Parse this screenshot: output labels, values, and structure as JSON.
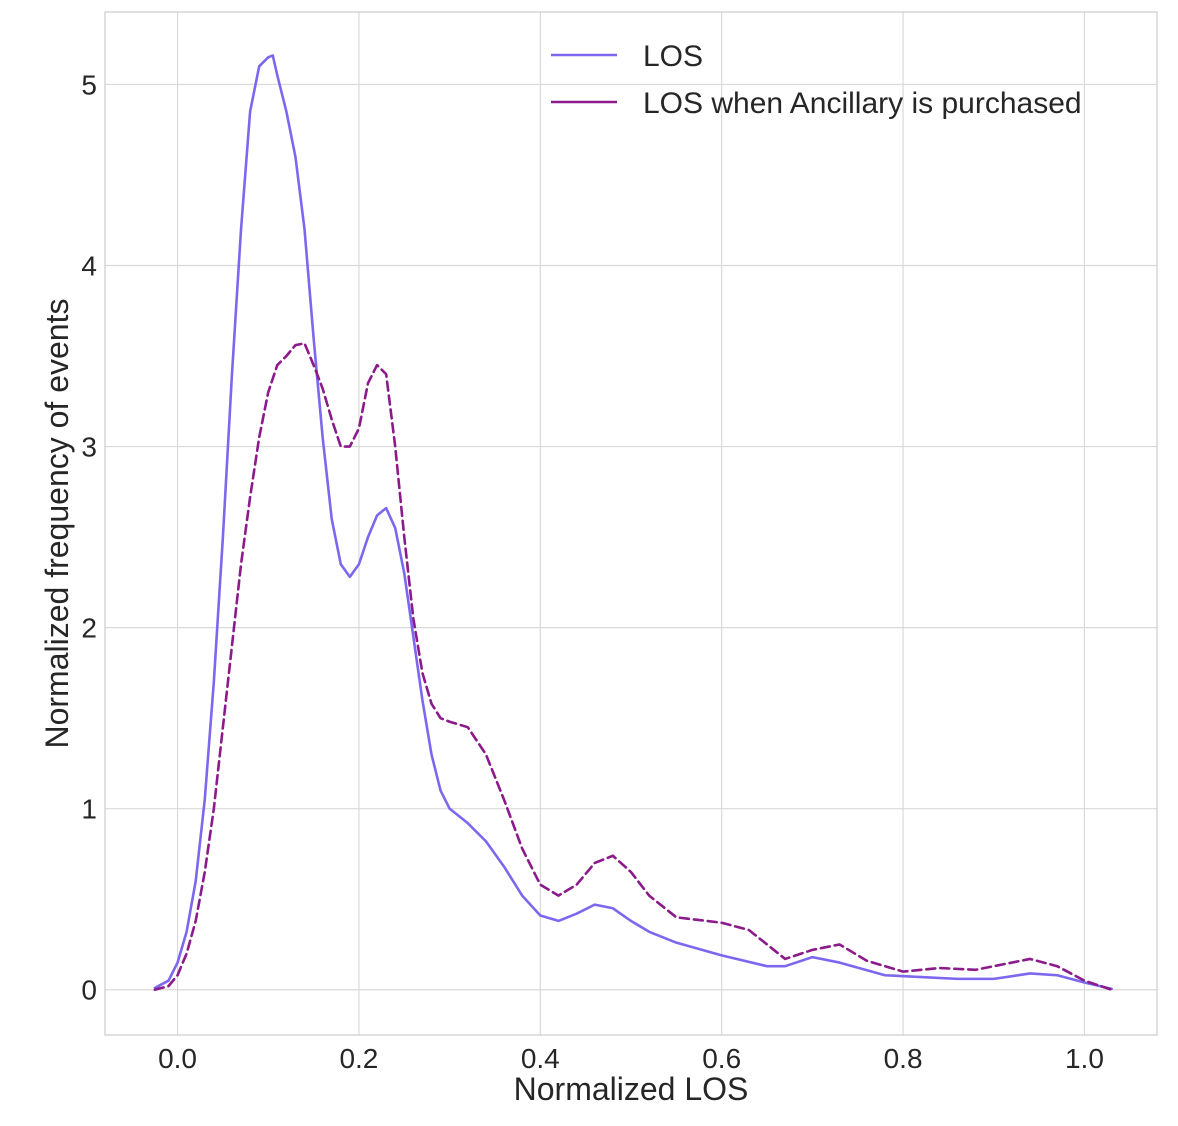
{
  "chart_data": {
    "type": "line",
    "title": "",
    "xlabel": "Normalized LOS",
    "ylabel": "Normalized frequency of events",
    "xlim": [
      -0.08,
      1.08
    ],
    "ylim": [
      -0.25,
      5.4
    ],
    "xticks": [
      0.0,
      0.2,
      0.4,
      0.6,
      0.8,
      1.0
    ],
    "xtick_labels": [
      "0.0",
      "0.2",
      "0.4",
      "0.6",
      "0.8",
      "1.0"
    ],
    "yticks": [
      0,
      1,
      2,
      3,
      4,
      5
    ],
    "ytick_labels": [
      "0",
      "1",
      "2",
      "3",
      "4",
      "5"
    ],
    "grid": true,
    "legend_position": "top-right",
    "series": [
      {
        "name": "LOS",
        "color": "#7b68ee",
        "style": "solid",
        "x": [
          -0.025,
          -0.01,
          0.0,
          0.01,
          0.02,
          0.03,
          0.04,
          0.05,
          0.06,
          0.07,
          0.08,
          0.09,
          0.1,
          0.105,
          0.11,
          0.12,
          0.13,
          0.14,
          0.15,
          0.16,
          0.17,
          0.18,
          0.19,
          0.2,
          0.21,
          0.22,
          0.23,
          0.24,
          0.25,
          0.26,
          0.27,
          0.28,
          0.29,
          0.3,
          0.32,
          0.34,
          0.36,
          0.38,
          0.4,
          0.42,
          0.44,
          0.46,
          0.48,
          0.5,
          0.52,
          0.55,
          0.6,
          0.65,
          0.67,
          0.7,
          0.73,
          0.78,
          0.82,
          0.86,
          0.9,
          0.94,
          0.97,
          1.0,
          1.03
        ],
        "y": [
          0.01,
          0.05,
          0.15,
          0.32,
          0.6,
          1.05,
          1.7,
          2.5,
          3.4,
          4.2,
          4.85,
          5.1,
          5.15,
          5.16,
          5.05,
          4.85,
          4.6,
          4.2,
          3.6,
          3.05,
          2.6,
          2.35,
          2.28,
          2.35,
          2.5,
          2.62,
          2.66,
          2.55,
          2.3,
          1.95,
          1.6,
          1.3,
          1.1,
          1.0,
          0.92,
          0.82,
          0.68,
          0.52,
          0.41,
          0.38,
          0.42,
          0.47,
          0.45,
          0.38,
          0.32,
          0.26,
          0.19,
          0.13,
          0.13,
          0.18,
          0.15,
          0.08,
          0.07,
          0.06,
          0.06,
          0.09,
          0.08,
          0.04,
          0.005
        ]
      },
      {
        "name": "LOS when Ancillary is purchased",
        "color": "#8b1a8b",
        "style": "dashed",
        "x": [
          -0.025,
          -0.01,
          0.0,
          0.01,
          0.02,
          0.03,
          0.04,
          0.05,
          0.06,
          0.07,
          0.08,
          0.09,
          0.1,
          0.11,
          0.12,
          0.13,
          0.14,
          0.15,
          0.16,
          0.17,
          0.18,
          0.19,
          0.2,
          0.21,
          0.22,
          0.23,
          0.24,
          0.25,
          0.26,
          0.27,
          0.28,
          0.29,
          0.3,
          0.32,
          0.34,
          0.36,
          0.38,
          0.4,
          0.42,
          0.44,
          0.46,
          0.48,
          0.5,
          0.52,
          0.55,
          0.6,
          0.63,
          0.65,
          0.67,
          0.7,
          0.73,
          0.76,
          0.8,
          0.84,
          0.88,
          0.91,
          0.94,
          0.97,
          1.0,
          1.03
        ],
        "y": [
          0.0,
          0.02,
          0.08,
          0.2,
          0.38,
          0.65,
          1.0,
          1.45,
          1.9,
          2.35,
          2.72,
          3.05,
          3.3,
          3.45,
          3.5,
          3.56,
          3.57,
          3.45,
          3.32,
          3.15,
          3.0,
          3.0,
          3.1,
          3.35,
          3.45,
          3.4,
          3.0,
          2.5,
          2.05,
          1.75,
          1.58,
          1.5,
          1.48,
          1.45,
          1.3,
          1.05,
          0.78,
          0.58,
          0.52,
          0.58,
          0.7,
          0.74,
          0.65,
          0.52,
          0.4,
          0.37,
          0.33,
          0.25,
          0.17,
          0.22,
          0.25,
          0.16,
          0.1,
          0.12,
          0.11,
          0.14,
          0.17,
          0.13,
          0.05,
          0.0
        ]
      }
    ]
  }
}
